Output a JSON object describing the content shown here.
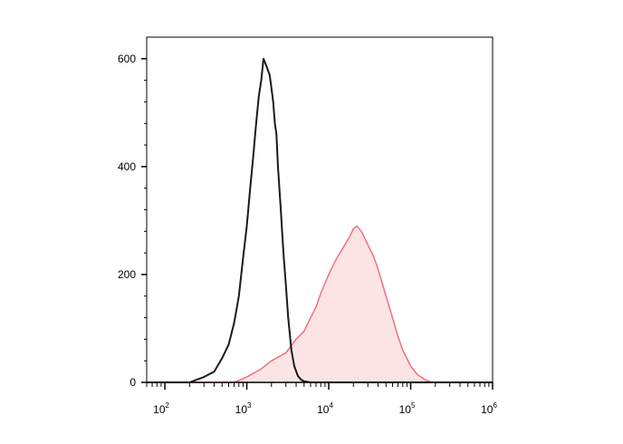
{
  "chart_data": {
    "type": "area",
    "title": "",
    "xlabel": "",
    "ylabel": "",
    "x_scale": "log",
    "xlim": [
      60,
      1000000
    ],
    "ylim": [
      0,
      640
    ],
    "x_ticks": [
      {
        "value": 100,
        "base": "10",
        "exp": "2"
      },
      {
        "value": 1000,
        "base": "10",
        "exp": "3"
      },
      {
        "value": 10000,
        "base": "10",
        "exp": "4"
      },
      {
        "value": 100000,
        "base": "10",
        "exp": "5"
      },
      {
        "value": 1000000,
        "base": "10",
        "exp": "6"
      }
    ],
    "y_ticks": [
      {
        "value": 0,
        "label": "0"
      },
      {
        "value": 200,
        "label": "200"
      },
      {
        "value": 400,
        "label": "400"
      },
      {
        "value": 600,
        "label": "600"
      }
    ],
    "grid": false,
    "legend": "none",
    "series": [
      {
        "color": "#1a1a1a",
        "fill": "none",
        "x": [
          60,
          200,
          300,
          400,
          500,
          600,
          700,
          800,
          900,
          1000,
          1100,
          1200,
          1300,
          1400,
          1500,
          1600,
          1700,
          1800,
          1900,
          2000,
          2100,
          2200,
          2300,
          2400,
          2600,
          2800,
          3000,
          3200,
          3500,
          3800,
          4200,
          4600,
          5000,
          6000,
          7000,
          1000000
        ],
        "y": [
          0,
          0,
          10,
          20,
          45,
          70,
          110,
          160,
          230,
          290,
          360,
          420,
          480,
          530,
          560,
          600,
          590,
          580,
          570,
          545,
          520,
          480,
          460,
          400,
          320,
          240,
          180,
          120,
          60,
          30,
          12,
          5,
          2,
          0,
          0,
          0
        ]
      },
      {
        "color": "#f07080",
        "fill": "#fce4e4",
        "x": [
          60,
          700,
          1000,
          1500,
          2000,
          3000,
          4000,
          5000,
          6000,
          7000,
          8000,
          10000,
          12000,
          15000,
          18000,
          20000,
          22000,
          25000,
          28000,
          30000,
          35000,
          40000,
          50000,
          60000,
          70000,
          80000,
          100000,
          120000,
          150000,
          180000,
          1000000
        ],
        "y": [
          0,
          0,
          10,
          25,
          40,
          55,
          80,
          95,
          120,
          140,
          165,
          200,
          225,
          250,
          270,
          285,
          290,
          280,
          265,
          255,
          235,
          210,
          160,
          120,
          85,
          60,
          30,
          15,
          5,
          0,
          0
        ]
      }
    ]
  },
  "colors": {
    "frame": "#000000",
    "background": "#ffffff"
  }
}
